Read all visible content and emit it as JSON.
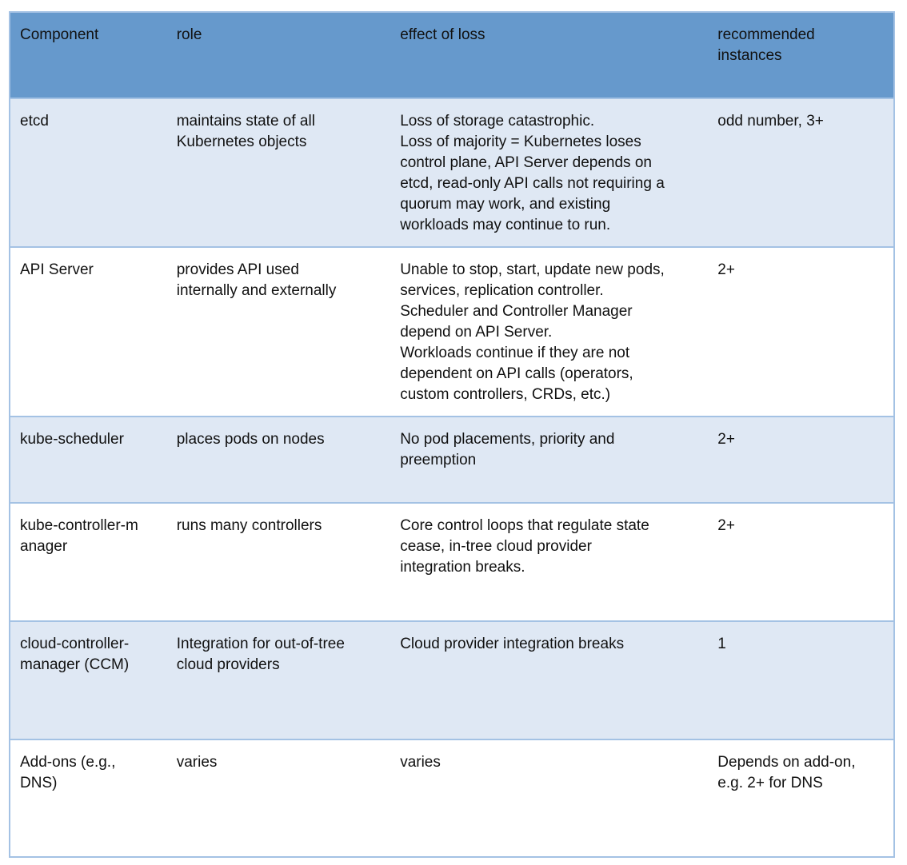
{
  "headers": [
    "Component",
    "role",
    "effect of loss",
    "recommended\ninstances"
  ],
  "rows": [
    {
      "component": "etcd",
      "role": "maintains state of all\nKubernetes objects",
      "effect": "Loss of storage catastrophic.\nLoss of majority = Kubernetes loses\ncontrol plane, API Server depends on\netcd, read-only API calls not requiring a\nquorum may work, and existing\nworkloads may continue to run.",
      "instances": "odd number, 3+"
    },
    {
      "component": "API Server",
      "role": "provides API used\ninternally and externally",
      "effect": "Unable to stop, start, update new pods,\nservices, replication controller.\nScheduler and Controller Manager\ndepend on API Server.\nWorkloads continue if they are not\ndependent on API calls (operators,\ncustom controllers, CRDs, etc.)",
      "instances": "2+"
    },
    {
      "component": "kube-scheduler",
      "role": "places pods on nodes",
      "effect": "No pod placements, priority and\npreemption",
      "instances": "2+"
    },
    {
      "component": "kube-controller-m\nanager",
      "role": "runs many controllers",
      "effect": "Core control loops that regulate state\ncease, in-tree cloud provider\nintegration breaks.",
      "instances": "2+"
    },
    {
      "component": "cloud-controller-\nmanager (CCM)",
      "role": "Integration for out-of-tree\ncloud providers",
      "effect": "Cloud provider integration breaks",
      "instances": "1"
    },
    {
      "component": "Add-ons (e.g.,\nDNS)",
      "role": "varies",
      "effect": "varies",
      "instances": "Depends on add-on,\ne.g. 2+ for DNS"
    }
  ],
  "colors": {
    "header": "#6699cc",
    "row_alt": "#dfe8f4",
    "border": "#a4c2e4"
  }
}
